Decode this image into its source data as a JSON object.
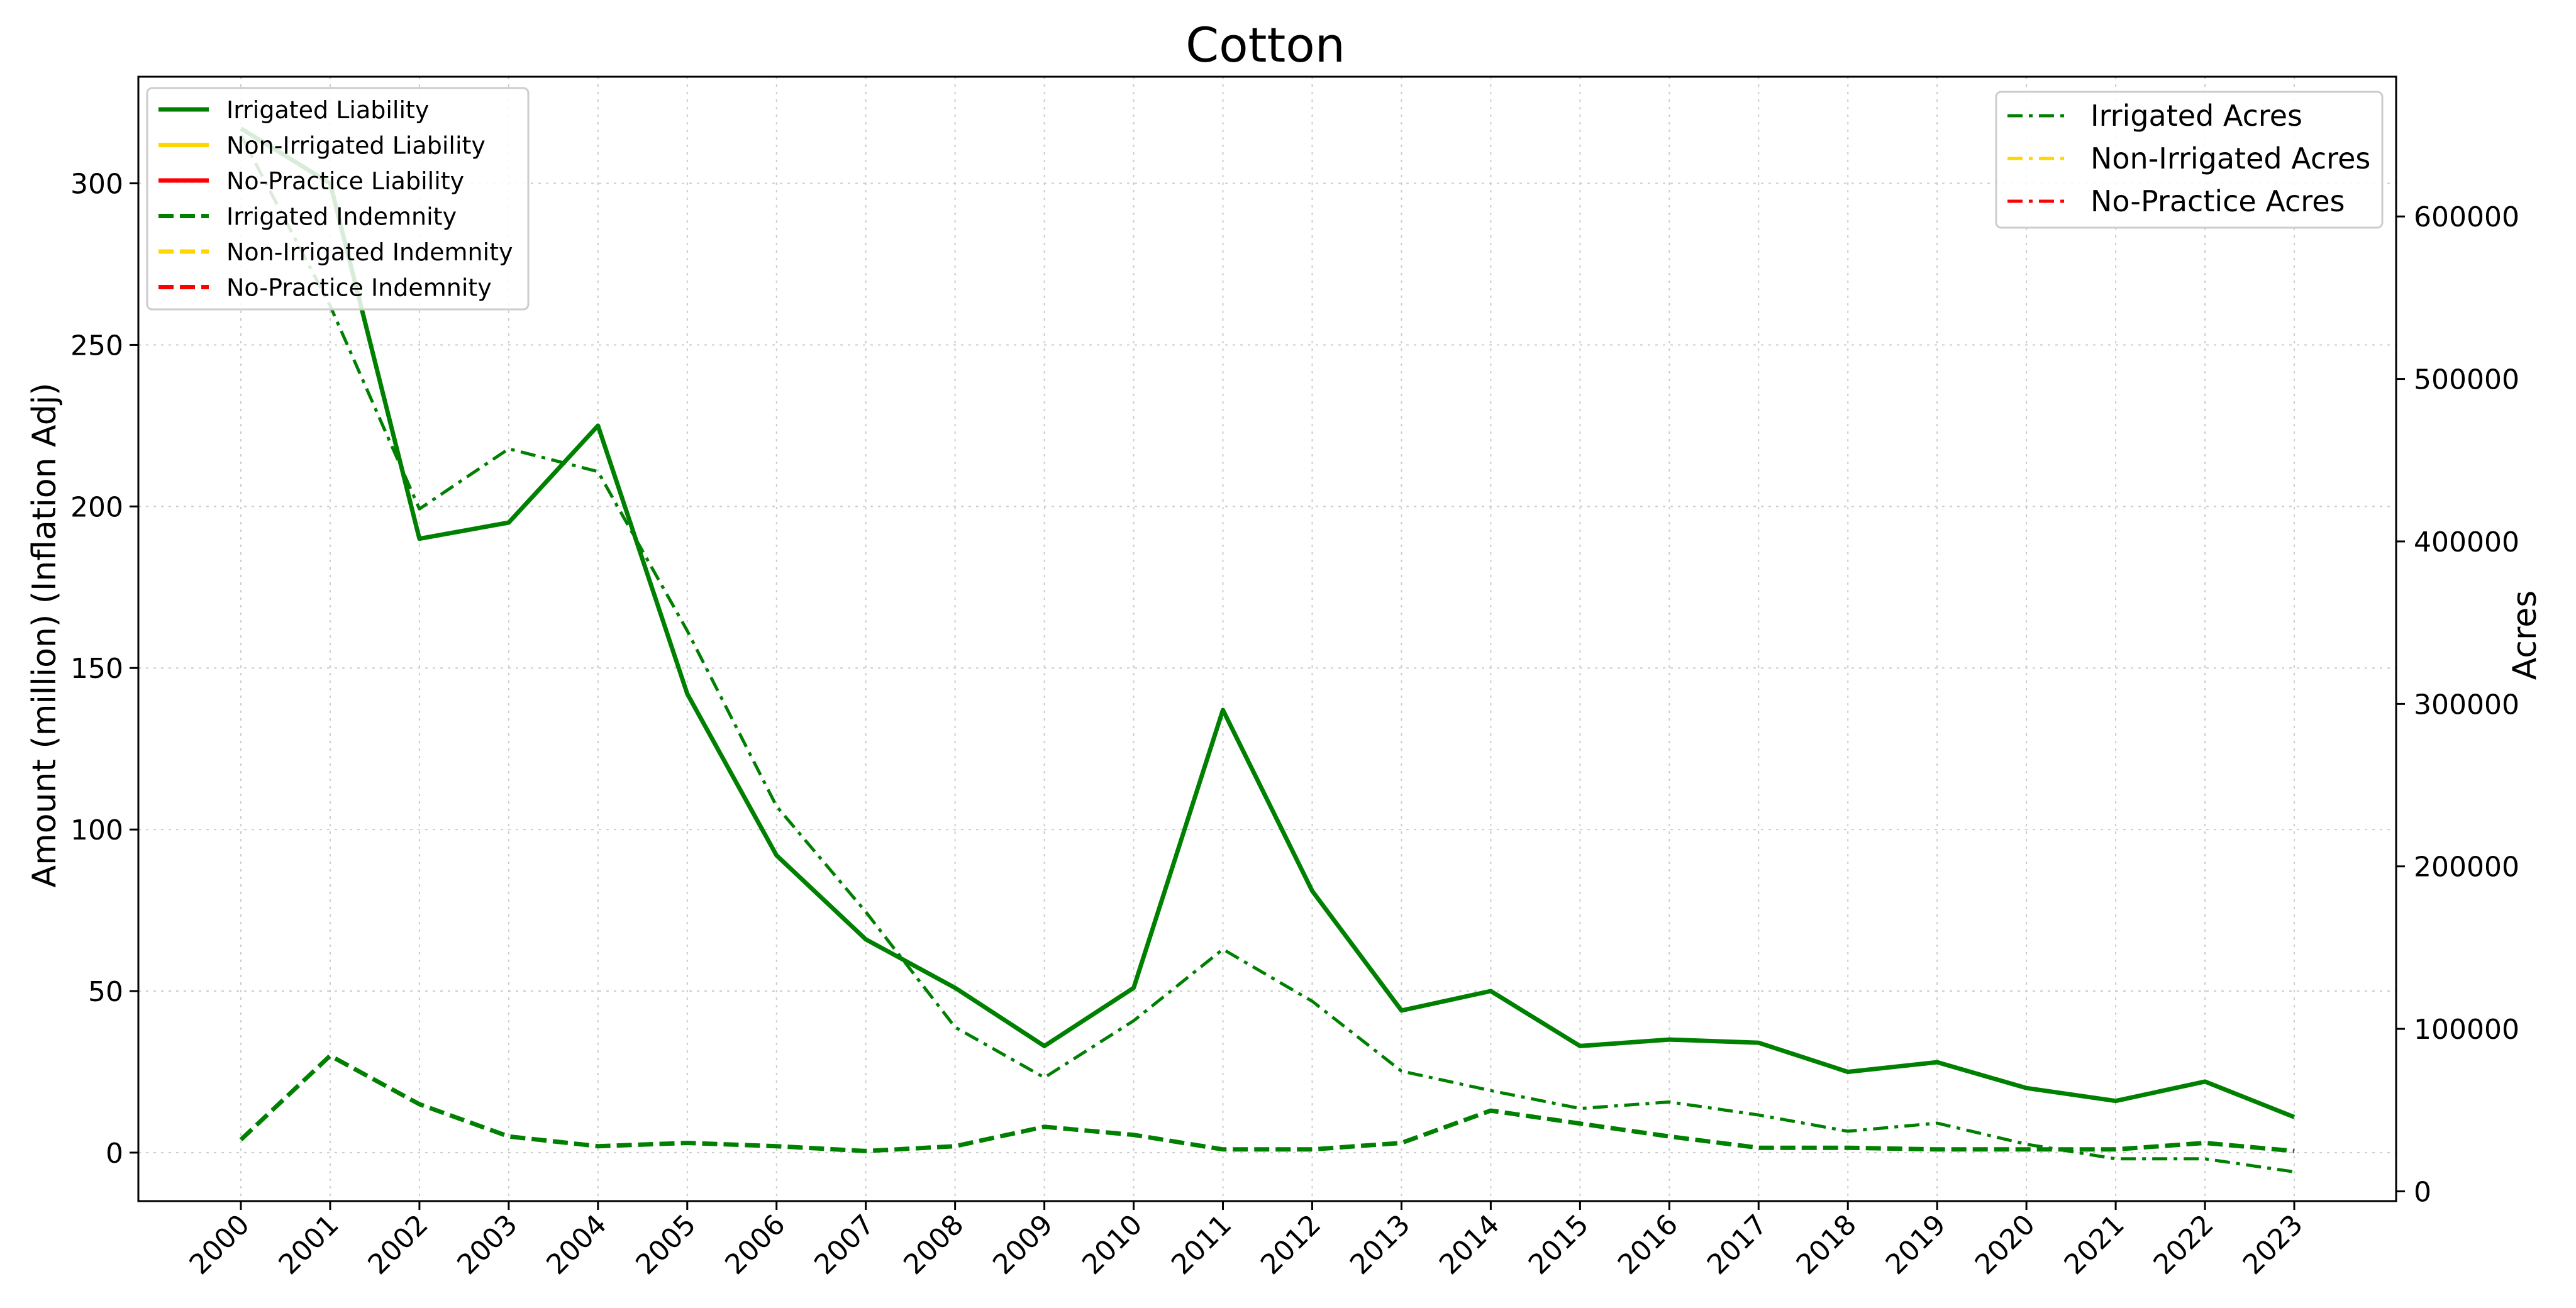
{
  "chart_data": {
    "type": "line",
    "title": "Cotton",
    "xlabel": "",
    "ylabel_left": "Amount (million) (Inflation Adj)",
    "ylabel_right": "Acres",
    "grid": true,
    "x": [
      "2000",
      "2001",
      "2002",
      "2003",
      "2004",
      "2005",
      "2006",
      "2007",
      "2008",
      "2009",
      "2010",
      "2011",
      "2012",
      "2013",
      "2014",
      "2015",
      "2016",
      "2017",
      "2018",
      "2019",
      "2020",
      "2021",
      "2022",
      "2023"
    ],
    "ylim_left": [
      -15,
      333
    ],
    "ylim_right": [
      -6000,
      686000
    ],
    "yticks_left": [
      "0",
      "50",
      "100",
      "150",
      "200",
      "250",
      "300"
    ],
    "yticks_right": [
      "0",
      "100000",
      "200000",
      "300000",
      "400000",
      "500000",
      "600000"
    ],
    "series_left": [
      {
        "name": "Irrigated Liability",
        "color": "#008000",
        "style": "solid",
        "values": [
          317,
          300,
          190,
          195,
          225,
          142,
          92,
          66,
          51,
          33,
          51,
          137,
          81,
          44,
          50,
          33,
          35,
          34,
          25,
          28,
          20,
          16,
          22,
          11
        ]
      },
      {
        "name": "Non-Irrigated Liability",
        "color": "#ffd700",
        "style": "solid",
        "values": []
      },
      {
        "name": "No-Practice Liability",
        "color": "#ff0000",
        "style": "solid",
        "values": []
      },
      {
        "name": "Irrigated Indemnity",
        "color": "#008000",
        "style": "dashed",
        "values": [
          4,
          30,
          15,
          5,
          2,
          3,
          2,
          0.5,
          2,
          8,
          5.5,
          1,
          1,
          3,
          13,
          9,
          5,
          1.5,
          1.5,
          1,
          1,
          1,
          3,
          0.5
        ]
      },
      {
        "name": "Non-Irrigated Indemnity",
        "color": "#ffd700",
        "style": "dashed",
        "values": []
      },
      {
        "name": "No-Practice Indemnity",
        "color": "#ff0000",
        "style": "dashed",
        "values": []
      }
    ],
    "series_right": [
      {
        "name": "Irrigated Acres",
        "color": "#008000",
        "style": "dashdot",
        "values": [
          650000,
          545000,
          420000,
          457000,
          443000,
          345000,
          237000,
          172000,
          101000,
          70000,
          105000,
          149000,
          117000,
          74000,
          62000,
          51000,
          55000,
          47000,
          37000,
          42000,
          29000,
          20000,
          20000,
          12000
        ]
      },
      {
        "name": "Non-Irrigated Acres",
        "color": "#ffd700",
        "style": "dashdot",
        "values": []
      },
      {
        "name": "No-Practice Acres",
        "color": "#ff0000",
        "style": "dashdot",
        "values": []
      }
    ],
    "legend_left_placement": "top-left",
    "legend_right_placement": "top-right"
  }
}
